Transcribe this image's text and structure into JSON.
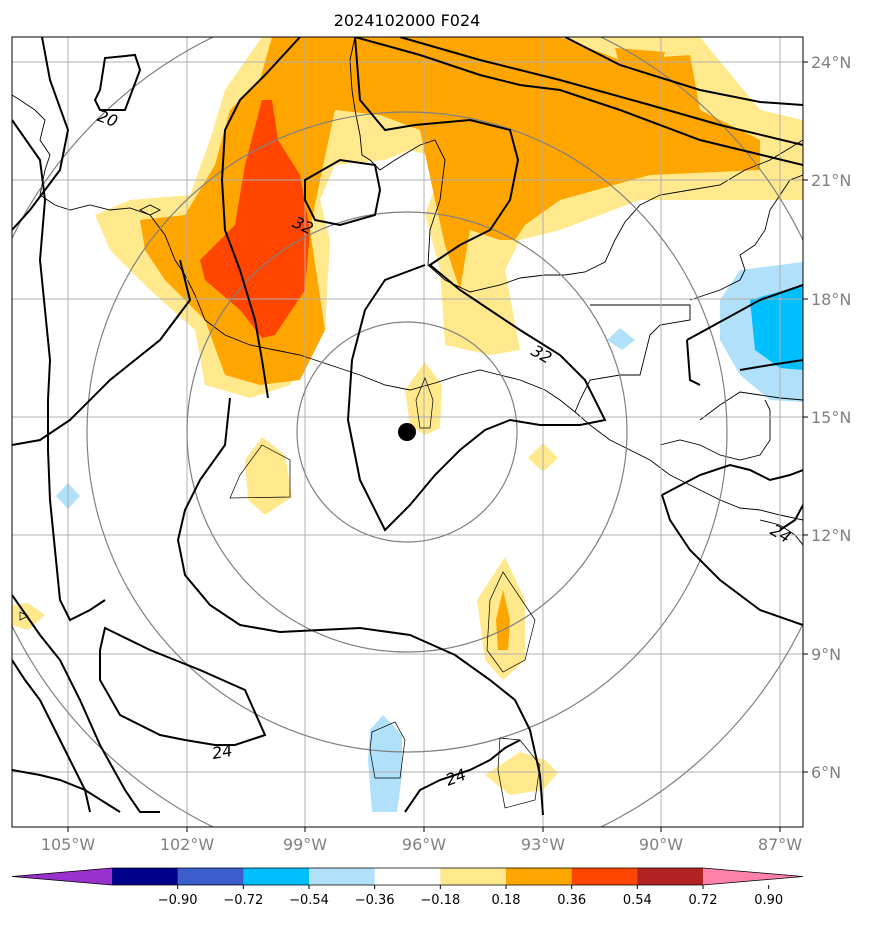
{
  "title": "2024102000 F024",
  "map": {
    "lat_labels": [
      "24°N",
      "21°N",
      "18°N",
      "15°N",
      "12°N",
      "9°N",
      "6°N"
    ],
    "lon_labels": [
      "105°W",
      "102°W",
      "99°W",
      "96°W",
      "93°W",
      "90°W",
      "87°W"
    ],
    "contour_labels": [
      "20",
      "32",
      "32",
      "24",
      "24",
      "24"
    ],
    "center_marker": {
      "lon": -96.4,
      "lat": 14.6
    },
    "colors": {
      "contour": "#000000",
      "coastline": "#000000",
      "grid": "#b0b0b0",
      "range_rings": "#808080"
    }
  },
  "colorbar": {
    "ticks": [
      "−0.90",
      "−0.72",
      "−0.54",
      "−0.36",
      "−0.18",
      "0.18",
      "0.36",
      "0.54",
      "0.72",
      "0.90"
    ],
    "colors": [
      "#9932cc",
      "#00008b",
      "#3a5fcd",
      "#00bfff",
      "#b0e0fa",
      "#ffffff",
      "#ffe98c",
      "#ffa500",
      "#ff4500",
      "#b22222",
      "#ff82ab"
    ]
  }
}
